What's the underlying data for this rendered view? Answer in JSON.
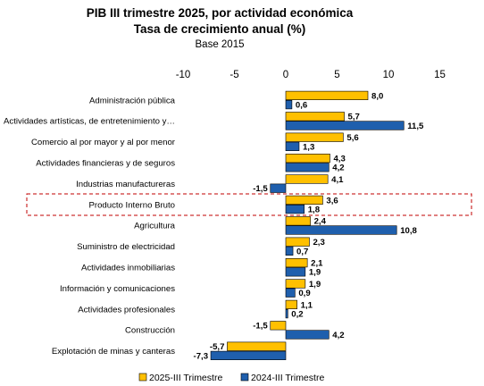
{
  "chart_data": {
    "type": "bar",
    "orientation": "horizontal",
    "title": "PIB III trimestre 2025, por actividad económica",
    "subtitle": "Tasa de crecimiento anual (%)",
    "note": "Base 2015",
    "xlim": [
      -10,
      15
    ],
    "xticks": [
      "-10",
      "-5",
      "0",
      "5",
      "10",
      "15"
    ],
    "xtick_values": [
      -10,
      -5,
      0,
      5,
      10,
      15
    ],
    "legend_position": "bottom",
    "highlighted_category": "Producto Interno Bruto",
    "categories": [
      "Administración pública",
      "Actividades artísticas, de entretenimiento y…",
      "Comercio al por mayor y al por menor",
      "Actividades financieras y de seguros",
      "Industrias manufactureras",
      "Producto Interno Bruto",
      "Agricultura",
      "Suministro de electricidad",
      "Actividades inmobiliarias",
      "Información y comunicaciones",
      "Actividades profesionales",
      "Construcción",
      "Explotación de minas y canteras"
    ],
    "series": [
      {
        "name": "2025-III Trimestre",
        "color": "#FFC000",
        "values": [
          8.0,
          5.7,
          5.6,
          4.3,
          4.1,
          3.6,
          2.4,
          2.3,
          2.1,
          1.9,
          1.1,
          -1.5,
          -5.7
        ],
        "labels": [
          "8,0",
          "5,7",
          "5,6",
          "4,3",
          "4,1",
          "3,6",
          "2,4",
          "2,3",
          "2,1",
          "1,9",
          "1,1",
          "-1,5",
          "-5,7"
        ]
      },
      {
        "name": "2024-III Trimestre",
        "color": "#1F5FAD",
        "values": [
          0.6,
          11.5,
          1.3,
          4.2,
          -1.5,
          1.8,
          10.8,
          0.7,
          1.9,
          0.9,
          0.2,
          4.2,
          -7.3
        ],
        "labels": [
          "0,6",
          "11,5",
          "1,3",
          "4,2",
          "-1,5",
          "1,8",
          "10,8",
          "0,7",
          "1,9",
          "0,9",
          "0,2",
          "4,2",
          "-7,3"
        ]
      }
    ]
  }
}
